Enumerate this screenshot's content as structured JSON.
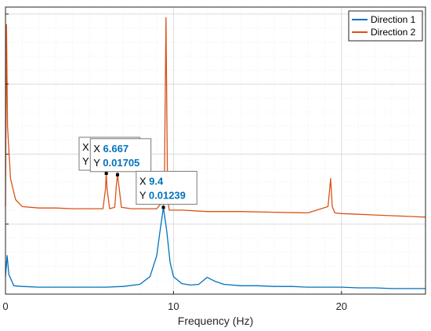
{
  "chart_data": {
    "type": "line",
    "xlabel": "Frequency (Hz)",
    "ylabel": "",
    "xlim": [
      0,
      25
    ],
    "ylim": [
      0,
      0.041
    ],
    "x_ticks": [
      "0",
      "10",
      "20"
    ],
    "grid": true,
    "legend_position": "top-right",
    "series": [
      {
        "name": "Direction 1",
        "color": "#0072BD",
        "x": [
          0,
          0.1,
          0.2,
          0.5,
          1,
          2,
          3,
          4,
          5,
          6,
          7,
          8,
          8.6,
          9.0,
          9.2,
          9.4,
          9.6,
          9.8,
          10.0,
          10.5,
          11,
          11.5,
          12.0,
          12.5,
          13,
          14,
          15,
          16,
          17,
          18,
          19,
          20,
          21,
          22,
          23,
          24,
          25
        ],
        "y": [
          0.0025,
          0.0055,
          0.0028,
          0.0012,
          0.0011,
          0.001,
          0.001,
          0.001,
          0.001,
          0.001,
          0.0011,
          0.0014,
          0.0025,
          0.0055,
          0.009,
          0.01239,
          0.009,
          0.0045,
          0.0025,
          0.0015,
          0.0013,
          0.0014,
          0.0024,
          0.0018,
          0.0014,
          0.0012,
          0.0012,
          0.0011,
          0.0011,
          0.001,
          0.001,
          0.001,
          0.0009,
          0.0009,
          0.0008,
          0.0008,
          0.0008
        ]
      },
      {
        "name": "Direction 2",
        "color": "#D95319",
        "x": [
          0,
          0.06,
          0.12,
          0.3,
          0.6,
          1,
          1.5,
          2,
          3,
          4,
          5,
          5.8,
          5.95,
          6.0,
          6.05,
          6.2,
          6.5,
          6.6,
          6.667,
          6.75,
          6.9,
          7.5,
          8,
          9,
          9.45,
          9.55,
          9.65,
          9.75,
          9.9,
          10.5,
          12,
          14,
          16,
          18,
          19.2,
          19.35,
          19.45,
          19.6,
          20,
          21,
          22,
          23,
          24,
          25
        ],
        "y": [
          0.0125,
          0.0385,
          0.024,
          0.0165,
          0.0135,
          0.0125,
          0.0124,
          0.0123,
          0.0123,
          0.0122,
          0.0122,
          0.0122,
          0.015,
          0.01725,
          0.015,
          0.0122,
          0.0124,
          0.0155,
          0.01705,
          0.0155,
          0.0124,
          0.0122,
          0.0122,
          0.0122,
          0.0135,
          0.0395,
          0.0135,
          0.012,
          0.012,
          0.012,
          0.0118,
          0.0118,
          0.0117,
          0.0116,
          0.0125,
          0.0165,
          0.0125,
          0.0116,
          0.0115,
          0.0114,
          0.0113,
          0.0112,
          0.0111,
          0.011
        ]
      }
    ],
    "datatips": [
      {
        "series": "Direction 2",
        "x": 6,
        "y": 0.01725,
        "x_text": "6",
        "y_text": "0.01725"
      },
      {
        "series": "Direction 2",
        "x": 6.667,
        "y": 0.01705,
        "x_text": "6.667",
        "y_text": "0.01705"
      },
      {
        "series": "Direction 1",
        "x": 9.4,
        "y": 0.01239,
        "x_text": "9.4",
        "y_text": "0.01239"
      }
    ]
  }
}
